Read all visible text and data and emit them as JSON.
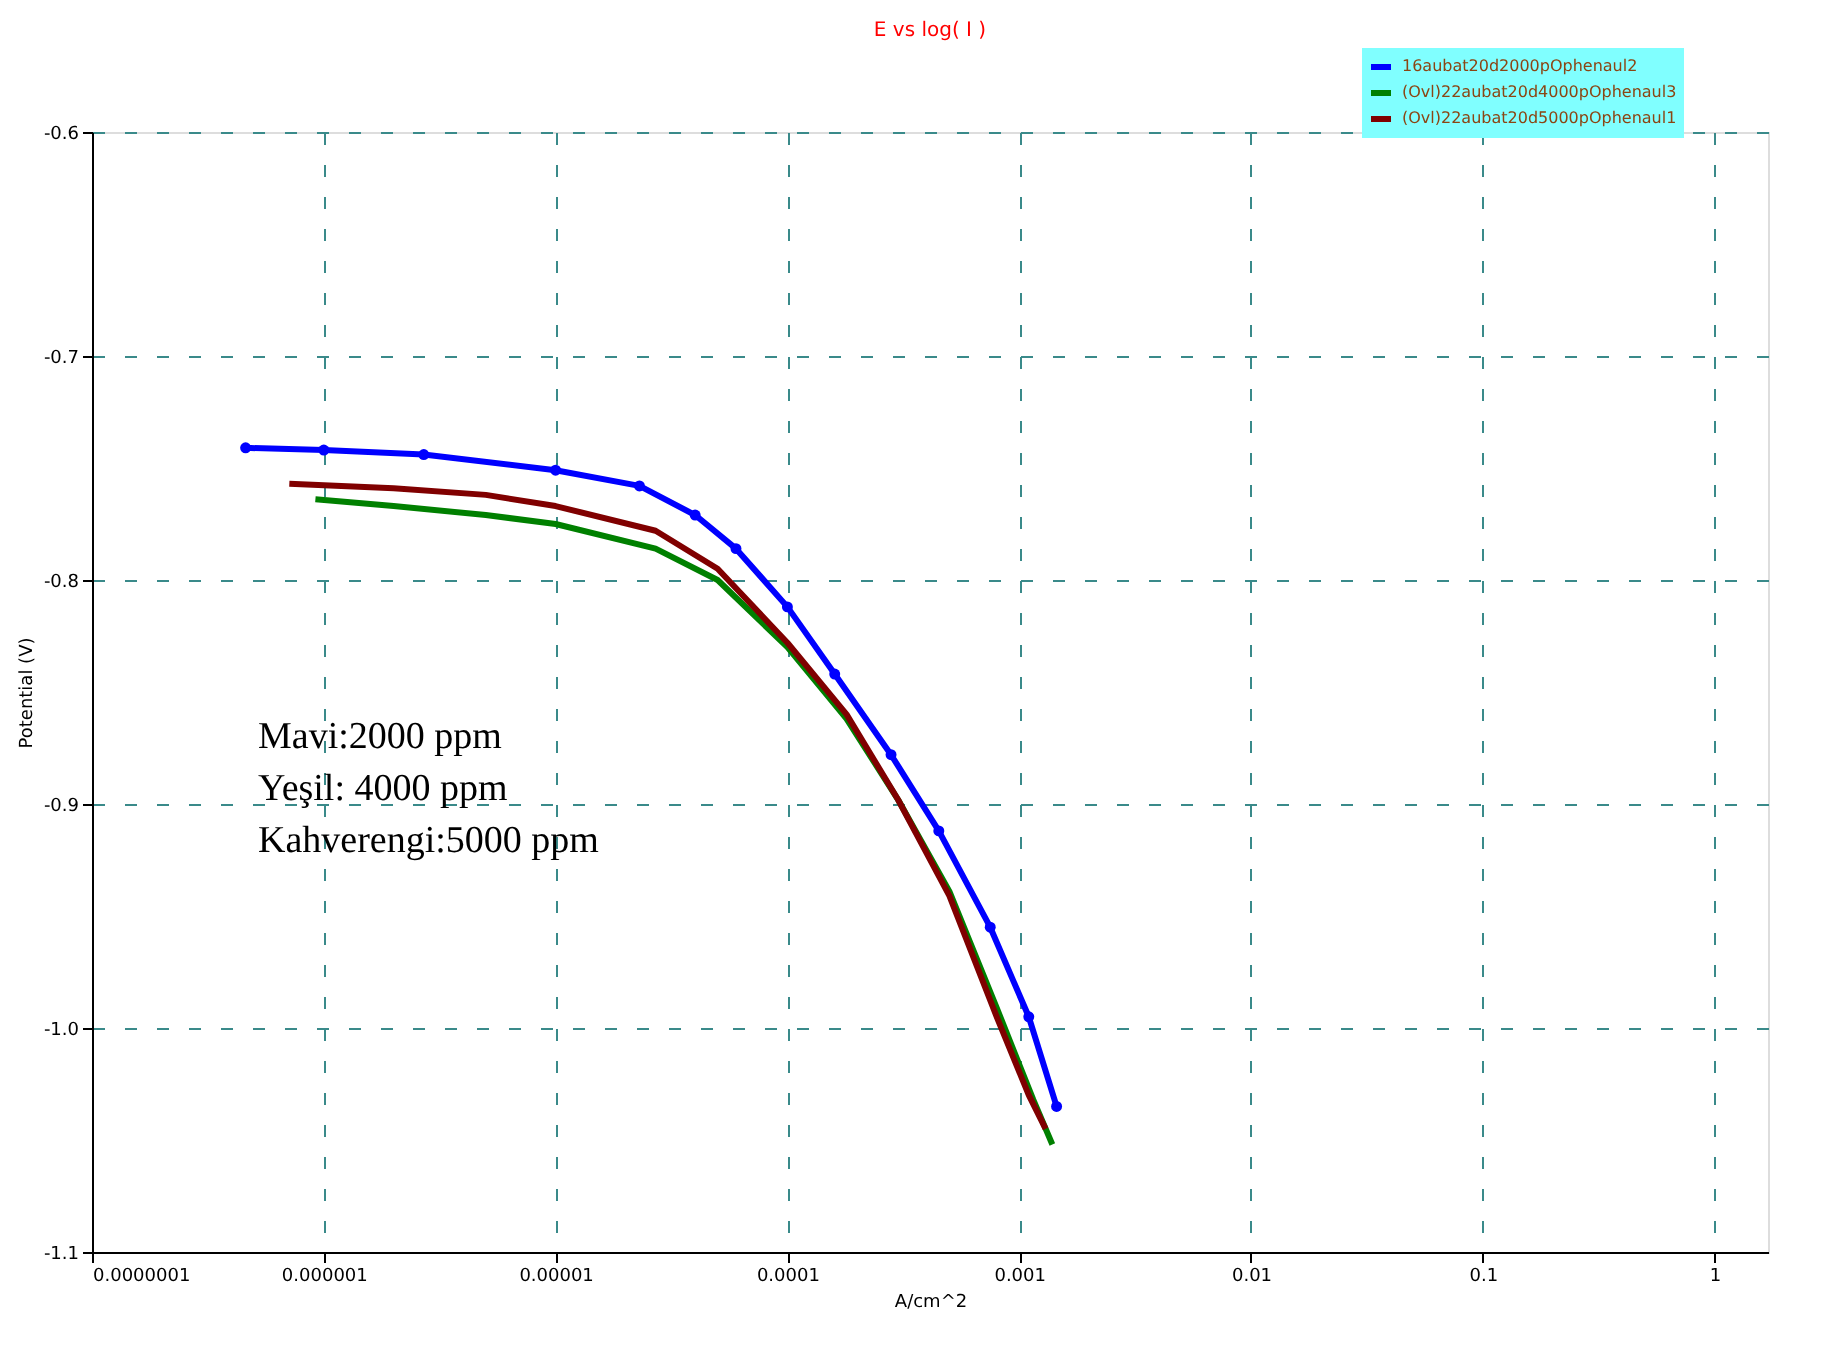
{
  "chart_data": {
    "type": "line",
    "title": "E vs log( I )",
    "xlabel": "A/cm^2",
    "ylabel": "Potential (V)",
    "log": "x",
    "xlim": [
      1e-07,
      1.7
    ],
    "xticks": [
      {
        "value": 1e-07,
        "label": "0.0000001"
      },
      {
        "value": 1e-06,
        "label": "0.000001"
      },
      {
        "value": 1e-05,
        "label": "0.00001"
      },
      0.0001,
      0.001,
      0.01,
      0.1,
      1
    ],
    "ylim": [
      -1.1,
      -0.6
    ],
    "yticks": [
      -0.6,
      -0.7,
      -0.8,
      -0.9,
      {
        "value": -1.0,
        "label": "-1.0"
      },
      -1.1
    ],
    "grid": true,
    "legend": "top right",
    "line_style": "solid",
    "series": [
      {
        "name": "16aubat20d2000pOphenaul2",
        "color": "#0000ff",
        "marker": "circle",
        "x": [
          4.6e-07,
          1e-06,
          2.7e-06,
          1e-05,
          2.3e-05,
          4e-05,
          6e-05,
          0.0001,
          0.00016,
          0.00028,
          0.00045,
          0.00075,
          0.0011,
          0.00145
        ],
        "values": [
          -0.741,
          -0.742,
          -0.744,
          -0.751,
          -0.758,
          -0.771,
          -0.786,
          -0.812,
          -0.842,
          -0.878,
          -0.912,
          -0.955,
          -0.995,
          -1.035
        ]
      },
      {
        "name": "(Ovl)22aubat20d4000pOphenaul3",
        "color": "#008000",
        "marker": "none",
        "x": [
          9.2e-07,
          2e-06,
          5e-06,
          1e-05,
          2.7e-05,
          5e-05,
          0.0001,
          0.00018,
          0.0003,
          0.0005,
          0.0008,
          0.00115,
          0.00139
        ],
        "values": [
          -0.764,
          -0.767,
          -0.771,
          -0.775,
          -0.786,
          -0.8,
          -0.83,
          -0.862,
          -0.898,
          -0.939,
          -0.991,
          -1.032,
          -1.052
        ]
      },
      {
        "name": "(Ovl)22aubat20d5000pOphenaul1",
        "color": "#800000",
        "marker": "none",
        "x": [
          7.1e-07,
          2e-06,
          5e-06,
          1e-05,
          2.7e-05,
          5e-05,
          0.0001,
          0.00018,
          0.0003,
          0.0005,
          0.0008,
          0.0011,
          0.0013
        ],
        "values": [
          -0.757,
          -0.759,
          -0.762,
          -0.767,
          -0.778,
          -0.795,
          -0.828,
          -0.86,
          -0.898,
          -0.941,
          -0.995,
          -1.03,
          -1.045
        ]
      }
    ],
    "annotations": [
      "Mavi:2000 ppm",
      "Yeşil: 4000 ppm",
      "Kahverengi:5000 ppm"
    ]
  }
}
